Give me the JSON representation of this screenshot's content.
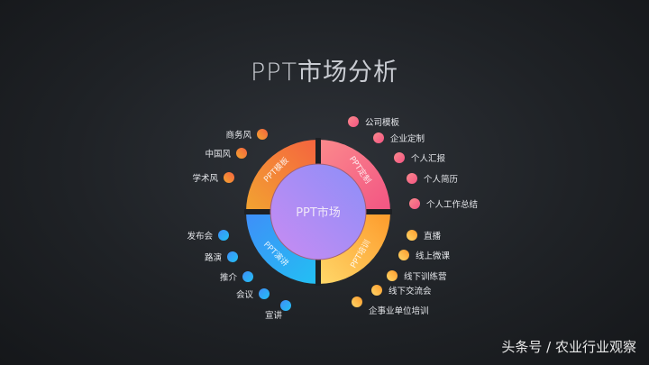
{
  "title": "PPT市场分析",
  "center_label": "PPT市场",
  "segments": [
    {
      "label": "PPT模板",
      "colors": [
        "#f2a431",
        "#f5633f"
      ],
      "items": [
        "商务风",
        "中国风",
        "学术风"
      ]
    },
    {
      "label": "PPT定制",
      "colors": [
        "#fb8a8c",
        "#f25483"
      ],
      "items": [
        "公司模板",
        "企业定制",
        "个人汇报",
        "个人简历",
        "个人工作总结"
      ]
    },
    {
      "label": "PPT培训",
      "colors": [
        "#fd9a2b",
        "#ffd86a"
      ],
      "items": [
        "直播",
        "线上微课",
        "线下训练营",
        "线下交流会",
        "企事业单位培训"
      ]
    },
    {
      "label": "PPT演讲",
      "colors": [
        "#3f8ef8",
        "#22c0f3"
      ],
      "items": [
        "发布会",
        "路演",
        "推介",
        "会议",
        "宣讲"
      ]
    }
  ],
  "center_colors": [
    "#c98cf2",
    "#8c8ef8"
  ],
  "watermark": "头条号 / 农业行业观察"
}
